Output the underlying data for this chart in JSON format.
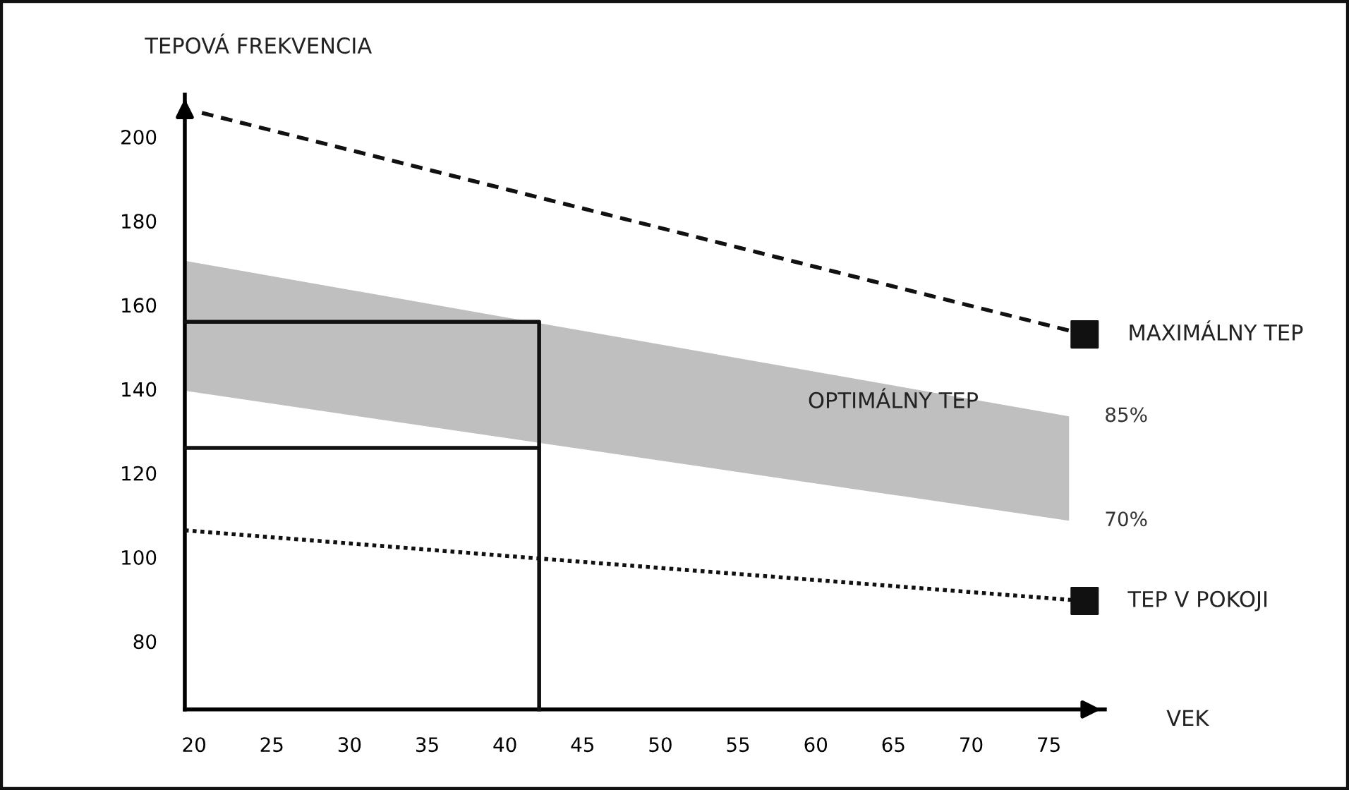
{
  "chart_data": {
    "type": "line",
    "ylabel": "TEPOVÁ FREKVENCIA",
    "xlabel": "VEK",
    "xlim": [
      19.4,
      78.6
    ],
    "ylim": [
      63.8,
      210
    ],
    "xticks": [
      20,
      25,
      30,
      35,
      40,
      45,
      50,
      55,
      60,
      65,
      70,
      75
    ],
    "yticks": [
      80,
      100,
      120,
      140,
      160,
      180,
      200
    ],
    "grid": false,
    "legend": false,
    "series": [
      {
        "type": "line",
        "color": "#bfbfbf",
        "x": [
          19.4,
          76.3
        ],
        "values": [
          null,
          null
        ],
        "upper": [
          170.5,
          133.5
        ],
        "lower": [
          139.6,
          108.7
        ]
      },
      {
        "type": "line",
        "color": "#111111",
        "line_style": "dashed",
        "marker": "none",
        "x": [
          20.5,
          77.3
        ],
        "values": [
          205.7,
          153
        ]
      },
      {
        "type": "scatter",
        "name": "MAXIMÁLNY TEP",
        "color": "#111111",
        "marker": "square",
        "x": [
          77.3
        ],
        "values": [
          153
        ]
      },
      {
        "type": "line",
        "color": "#111111",
        "line_style": "dotted",
        "marker": "none",
        "x": [
          19.4,
          42.2,
          77.3
        ],
        "values": [
          106.4,
          99.7,
          89.6
        ]
      },
      {
        "type": "scatter",
        "name": "TEP V POKOJI",
        "color": "#111111",
        "marker": "square",
        "x": [
          77.3
        ],
        "values": [
          89.6
        ]
      },
      {
        "type": "line",
        "color": "#111111",
        "line_style": "solid",
        "marker": "none",
        "x": [
          19.4,
          42.2,
          42.2
        ],
        "values": [
          156,
          156,
          63.8
        ]
      },
      {
        "type": "line",
        "color": "#111111",
        "line_style": "solid",
        "marker": "none",
        "x": [
          19.4,
          42.2
        ],
        "values": [
          126,
          126
        ]
      }
    ],
    "annotations": [
      "OPTIMÁLNY TEP",
      {
        "text": "85%",
        "x": 76.3,
        "y": 133.5
      },
      {
        "text": "70%",
        "x": 76.3,
        "y": 108.7
      }
    ]
  }
}
